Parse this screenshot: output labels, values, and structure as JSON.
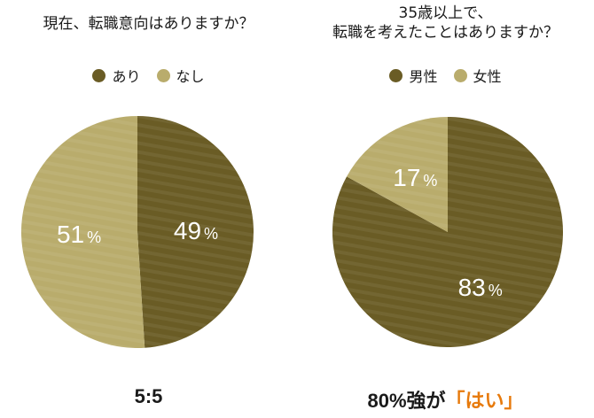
{
  "colors": {
    "dark": "#6a5c25",
    "light": "#b9ac6c",
    "highlight": "#e77a0c"
  },
  "chart_data": [
    {
      "type": "pie",
      "title": "現在、転職意向はありますか？",
      "legend": [
        "あり",
        "なし"
      ],
      "slices": [
        {
          "label": "あり",
          "value": 49,
          "display": "49",
          "color": "#6a5c25"
        },
        {
          "label": "なし",
          "value": 51,
          "display": "51",
          "color": "#b9ac6c"
        }
      ],
      "unit": "%",
      "summary": "5:5"
    },
    {
      "type": "pie",
      "title_lines": [
        "35歳以上で、",
        "転職を考えたことはありますか？"
      ],
      "legend": [
        "男性",
        "女性"
      ],
      "slices": [
        {
          "label": "男性",
          "value": 83,
          "display": "83",
          "color": "#6a5c25"
        },
        {
          "label": "女性",
          "value": 17,
          "display": "17",
          "color": "#b9ac6c"
        }
      ],
      "unit": "%",
      "summary_prefix": "80%強が",
      "summary_highlight": "「はい」"
    }
  ]
}
